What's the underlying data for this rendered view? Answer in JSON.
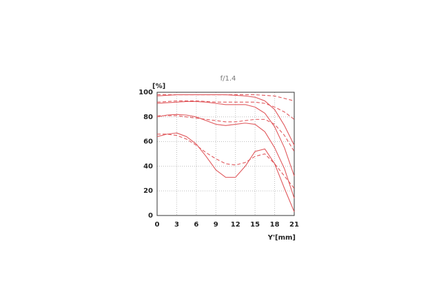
{
  "chart_data": {
    "type": "line",
    "title": "f/1.4",
    "y_label": "[%]",
    "x_label": "Y'[mm]",
    "x": [
      0,
      1.5,
      3,
      4.5,
      6,
      7.5,
      9,
      10.5,
      12,
      13.5,
      15,
      16.5,
      18,
      19.5,
      21
    ],
    "series": [
      {
        "color": "#e0585c",
        "line_style": "solid",
        "values": [
          97,
          97.5,
          98,
          98,
          98,
          98,
          98,
          98,
          97.5,
          97,
          96,
          93,
          86,
          73,
          57
        ]
      },
      {
        "color": "#e0585c",
        "line_style": "dashed",
        "values": [
          98,
          98,
          98,
          98,
          98,
          98,
          98,
          98,
          98,
          98,
          98,
          97.5,
          97,
          95,
          93
        ]
      },
      {
        "color": "#e0585c",
        "line_style": "solid",
        "values": [
          91,
          91.5,
          92,
          92.5,
          92.5,
          92,
          91,
          90,
          90,
          90,
          88,
          83,
          72,
          55,
          32
        ]
      },
      {
        "color": "#e0585c",
        "line_style": "dashed",
        "values": [
          92,
          92.5,
          93,
          93,
          93,
          92.5,
          92,
          92,
          92,
          92,
          92,
          91,
          88,
          84,
          78
        ]
      },
      {
        "color": "#e0585c",
        "line_style": "solid",
        "values": [
          80,
          81.5,
          82,
          81.5,
          80,
          77,
          74,
          73,
          74,
          75,
          74,
          68,
          55,
          38,
          14
        ]
      },
      {
        "color": "#e0585c",
        "line_style": "dashed",
        "values": [
          81,
          81,
          81,
          80,
          79,
          78,
          77,
          76,
          76,
          77,
          78,
          78,
          74,
          65,
          52
        ]
      },
      {
        "color": "#e0585c",
        "line_style": "solid",
        "values": [
          64,
          66,
          67,
          64,
          58,
          48,
          37,
          31,
          31,
          40,
          52,
          54,
          42,
          22,
          3
        ]
      },
      {
        "color": "#e0585c",
        "line_style": "dashed",
        "values": [
          66,
          66,
          65,
          62,
          57,
          51,
          46,
          42,
          41,
          43,
          48,
          50,
          42,
          32,
          22
        ]
      }
    ],
    "xlim": [
      0,
      21
    ],
    "xticks": [
      0,
      3,
      6,
      9,
      12,
      15,
      18,
      21
    ],
    "ylim": [
      0,
      100
    ],
    "yticks": [
      0,
      20,
      40,
      60,
      80,
      100
    ],
    "grid": true
  }
}
